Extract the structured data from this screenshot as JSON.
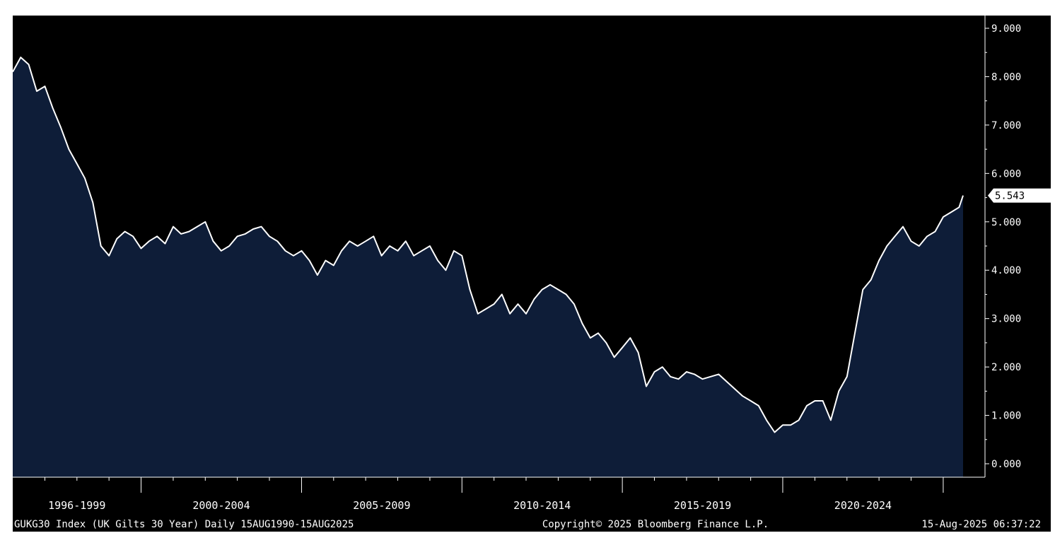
{
  "chart_data": {
    "type": "area",
    "title": "",
    "xlabel": "",
    "ylabel": "",
    "x_range": [
      "1996-01-01",
      "2025-08-15"
    ],
    "ylim": [
      0,
      9
    ],
    "y_ticks": [
      "9.000",
      "8.000",
      "7.000",
      "6.000",
      "5.000",
      "4.000",
      "3.000",
      "2.000",
      "1.000",
      "0.000"
    ],
    "x_ticks": [
      {
        "label": "1996-1999",
        "from": "1996-01-01",
        "to": "2000-01-01"
      },
      {
        "label": "2000-2004",
        "from": "2000-01-01",
        "to": "2005-01-01"
      },
      {
        "label": "2005-2009",
        "from": "2005-01-01",
        "to": "2010-01-01"
      },
      {
        "label": "2010-2014",
        "from": "2010-01-01",
        "to": "2015-01-01"
      },
      {
        "label": "2015-2019",
        "from": "2015-01-01",
        "to": "2020-01-01"
      },
      {
        "label": "2020-2024",
        "from": "2020-01-01",
        "to": "2025-01-01"
      }
    ],
    "last_value_label": "5.543",
    "series": [
      {
        "x": [
          "1996-01",
          "1996-04",
          "1996-07",
          "1996-10",
          "1997-01",
          "1997-04",
          "1997-07",
          "1997-10",
          "1998-01",
          "1998-04",
          "1998-07",
          "1998-10",
          "1999-01",
          "1999-04",
          "1999-07",
          "1999-10",
          "2000-01",
          "2000-04",
          "2000-07",
          "2000-10",
          "2001-01",
          "2001-04",
          "2001-07",
          "2001-10",
          "2002-01",
          "2002-04",
          "2002-07",
          "2002-10",
          "2003-01",
          "2003-04",
          "2003-07",
          "2003-10",
          "2004-01",
          "2004-04",
          "2004-07",
          "2004-10",
          "2005-01",
          "2005-04",
          "2005-07",
          "2005-10",
          "2006-01",
          "2006-04",
          "2006-07",
          "2006-10",
          "2007-01",
          "2007-04",
          "2007-07",
          "2007-10",
          "2008-01",
          "2008-04",
          "2008-07",
          "2008-10",
          "2009-01",
          "2009-04",
          "2009-07",
          "2009-10",
          "2010-01",
          "2010-04",
          "2010-07",
          "2010-10",
          "2011-01",
          "2011-04",
          "2011-07",
          "2011-10",
          "2012-01",
          "2012-04",
          "2012-07",
          "2012-10",
          "2013-01",
          "2013-04",
          "2013-07",
          "2013-10",
          "2014-01",
          "2014-04",
          "2014-07",
          "2014-10",
          "2015-01",
          "2015-04",
          "2015-07",
          "2015-10",
          "2016-01",
          "2016-04",
          "2016-07",
          "2016-10",
          "2017-01",
          "2017-04",
          "2017-07",
          "2017-10",
          "2018-01",
          "2018-04",
          "2018-07",
          "2018-10",
          "2019-01",
          "2019-04",
          "2019-07",
          "2019-10",
          "2020-01",
          "2020-04",
          "2020-07",
          "2020-10",
          "2021-01",
          "2021-04",
          "2021-07",
          "2021-10",
          "2022-01",
          "2022-04",
          "2022-07",
          "2022-10",
          "2023-01",
          "2023-04",
          "2023-07",
          "2023-10",
          "2024-01",
          "2024-04",
          "2024-07",
          "2024-10",
          "2025-01",
          "2025-04",
          "2025-07",
          "2025-08-15"
        ],
        "values": [
          8.1,
          8.4,
          8.25,
          7.7,
          7.8,
          7.35,
          6.95,
          6.5,
          6.2,
          5.9,
          5.4,
          4.5,
          4.3,
          4.65,
          4.8,
          4.7,
          4.45,
          4.6,
          4.7,
          4.55,
          4.9,
          4.75,
          4.8,
          4.9,
          5.0,
          4.6,
          4.4,
          4.5,
          4.7,
          4.75,
          4.85,
          4.9,
          4.7,
          4.6,
          4.4,
          4.3,
          4.4,
          4.2,
          3.9,
          4.2,
          4.1,
          4.4,
          4.6,
          4.5,
          4.6,
          4.7,
          4.3,
          4.5,
          4.4,
          4.6,
          4.3,
          4.4,
          4.5,
          4.2,
          4.0,
          4.4,
          4.3,
          3.6,
          3.1,
          3.2,
          3.3,
          3.5,
          3.1,
          3.3,
          3.1,
          3.4,
          3.6,
          3.7,
          3.6,
          3.5,
          3.3,
          2.9,
          2.6,
          2.7,
          2.5,
          2.2,
          2.4,
          2.6,
          2.3,
          1.6,
          1.9,
          2.0,
          1.8,
          1.75,
          1.9,
          1.85,
          1.75,
          1.8,
          1.85,
          1.7,
          1.55,
          1.4,
          1.3,
          1.2,
          0.9,
          0.65,
          0.8,
          0.8,
          0.9,
          1.2,
          1.3,
          1.3,
          0.9,
          1.5,
          1.8,
          2.7,
          3.6,
          3.8,
          4.2,
          4.5,
          4.7,
          4.9,
          4.6,
          4.5,
          4.7,
          4.8,
          5.1,
          5.2,
          5.3,
          5.543
        ]
      }
    ]
  },
  "footer": {
    "left": "GUKG30 Index (UK Gilts 30 Year)  Daily 15AUG1990-15AUG2025",
    "center": "Copyright© 2025 Bloomberg Finance L.P.",
    "right": "15-Aug-2025 06:37:22"
  },
  "colors": {
    "plot_background": "#000000",
    "area_fill": "#0e1d38",
    "line": "#ffffff",
    "axis_text": "#ffffff"
  }
}
